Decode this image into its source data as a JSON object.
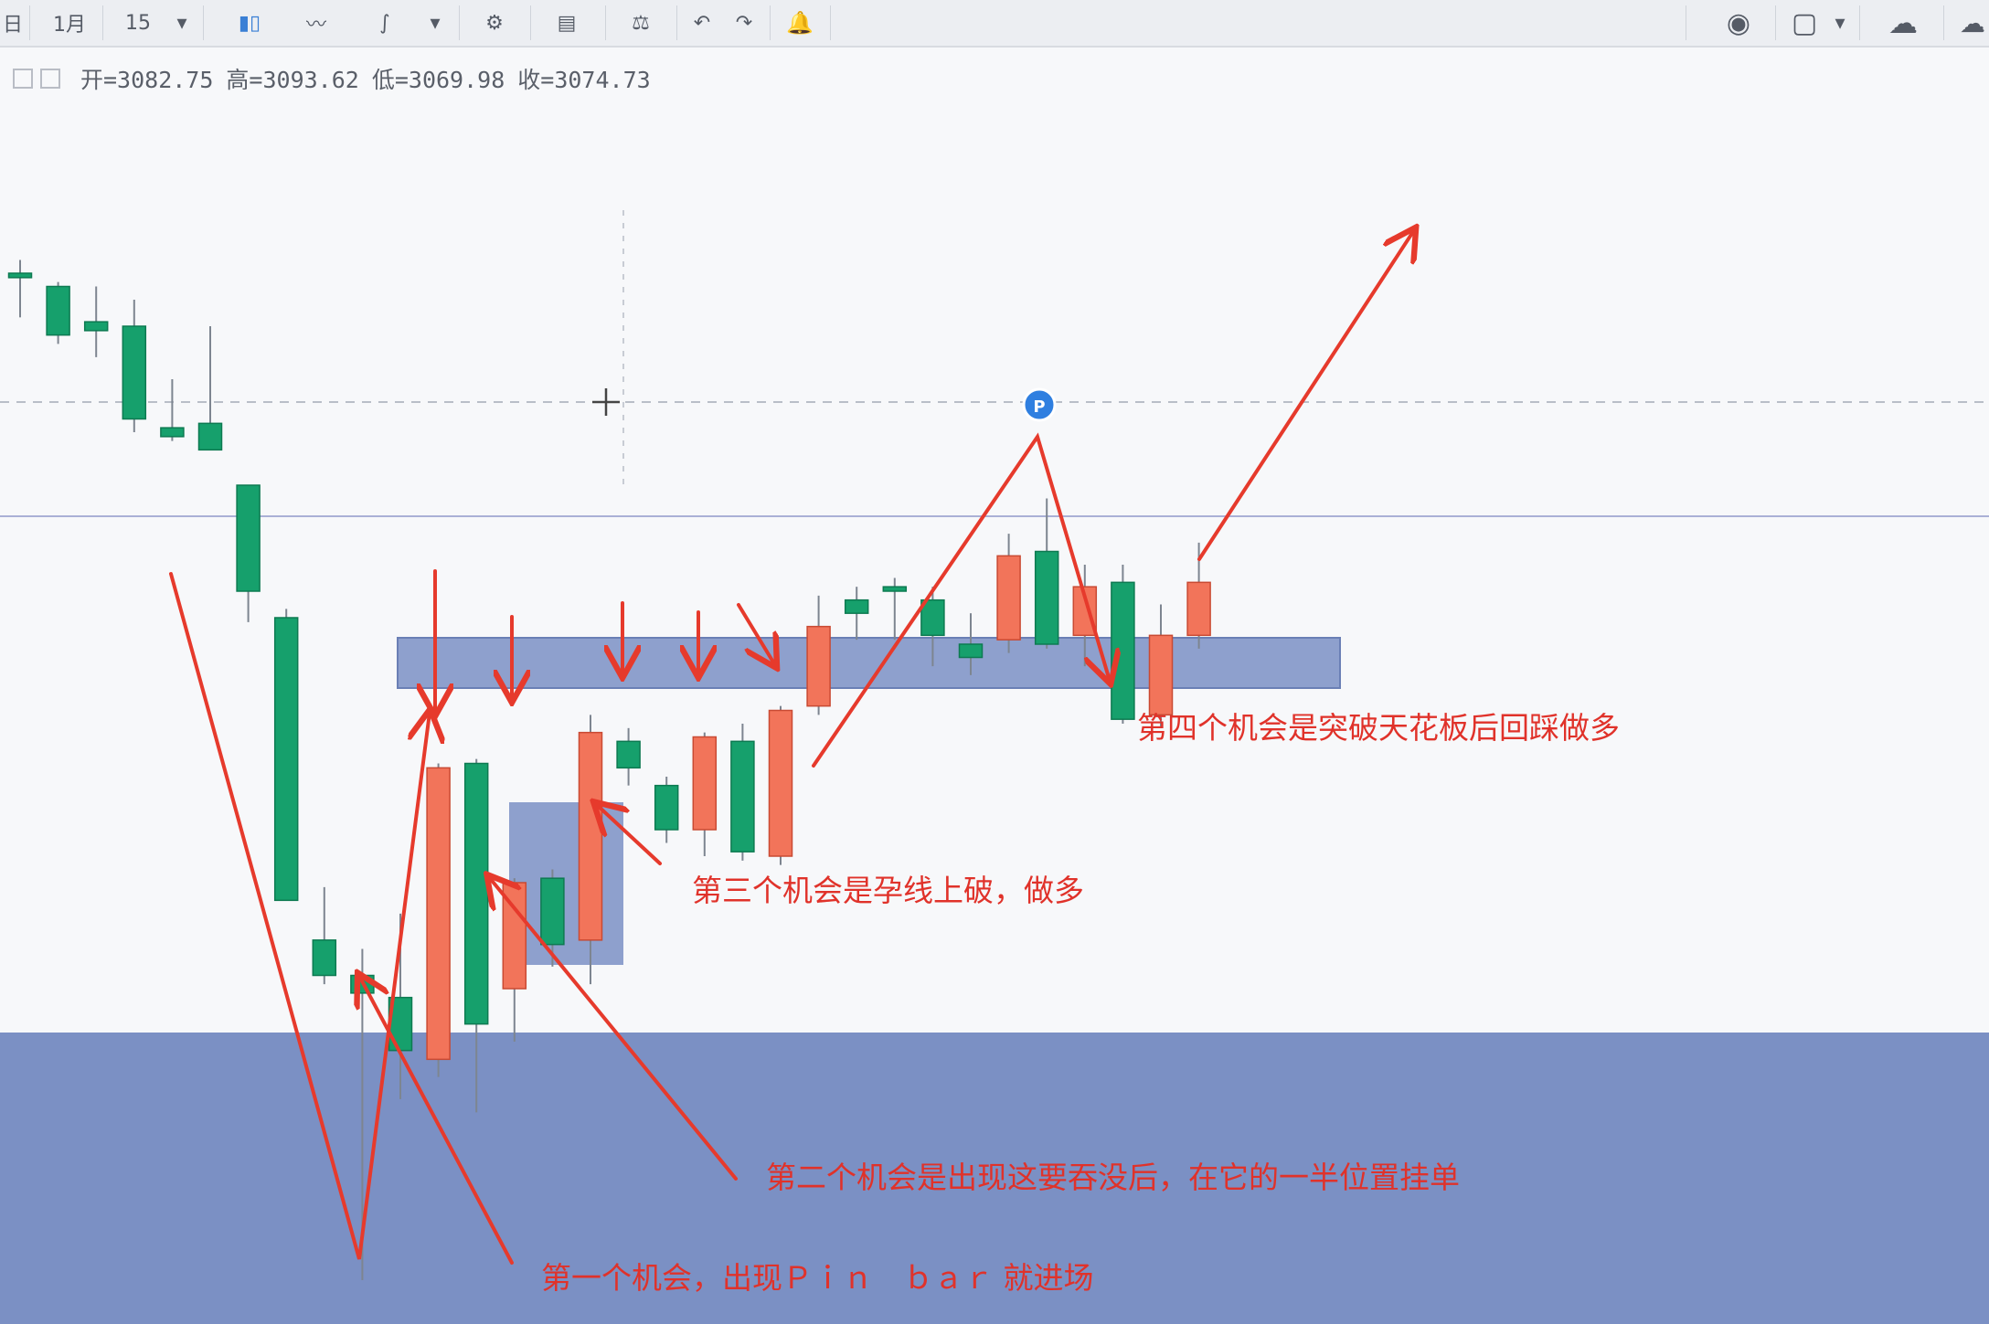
{
  "toolbar": {
    "period_day": "日",
    "period_month": "1月",
    "minutes": "15",
    "items": [
      {
        "name": "dropdown-icon",
        "glyph": "▾"
      },
      {
        "name": "candlestick-icon",
        "glyph": "▮▯"
      },
      {
        "name": "line-chart-icon",
        "glyph": "〰"
      },
      {
        "name": "indicator-icon",
        "glyph": "∫"
      },
      {
        "name": "settings-icon",
        "glyph": "⚙"
      },
      {
        "name": "compare-icon",
        "glyph": "▤"
      },
      {
        "name": "balance-icon",
        "glyph": "⚖"
      },
      {
        "name": "undo-icon",
        "glyph": "↶"
      },
      {
        "name": "redo-icon",
        "glyph": "↷"
      },
      {
        "name": "alert-icon",
        "glyph": "🔔"
      },
      {
        "name": "camera-icon",
        "glyph": "◉"
      },
      {
        "name": "layout-icon",
        "glyph": "▢"
      },
      {
        "name": "cloud-icon",
        "glyph": "☁"
      }
    ]
  },
  "ohlc": {
    "open": "开=3082.75",
    "high": "高=3093.62",
    "low": "低=3069.98",
    "close": "收=3074.73"
  },
  "colors": {
    "up": "#f2745a",
    "down": "#16a06c",
    "zone": "#7b90c4",
    "arrow": "#e63a2c"
  },
  "price_line_marker": "P",
  "annotations": {
    "fourth": "第四个机会是突破天花板后回踩做多",
    "third": "第三个机会是孕线上破，做多",
    "second": "第二个机会是出现这要吞没后，在它的一半位置挂单",
    "first": "第一个机会，出现Ｐｉｎ　ｂａｒ 就进场"
  },
  "candles": [
    {
      "o": 3118,
      "h": 3121,
      "l": 3108,
      "c": 3117
    },
    {
      "o": 3115,
      "h": 3116,
      "l": 3102,
      "c": 3104
    },
    {
      "o": 3107,
      "h": 3115,
      "l": 3099,
      "c": 3105
    },
    {
      "o": 3106,
      "h": 3112,
      "l": 3082,
      "c": 3085
    },
    {
      "o": 3083,
      "h": 3094,
      "l": 3080,
      "c": 3081
    },
    {
      "o": 3084,
      "h": 3106,
      "l": 3078,
      "c": 3078
    },
    {
      "o": 3070,
      "h": 3070,
      "l": 3039,
      "c": 3046
    },
    {
      "o": 3040,
      "h": 3042,
      "l": 2976,
      "c": 2976
    },
    {
      "o": 2967,
      "h": 2979,
      "l": 2957,
      "c": 2959
    },
    {
      "o": 2959,
      "h": 2965,
      "l": 2890,
      "c": 2955
    },
    {
      "o": 2954,
      "h": 2973,
      "l": 2931,
      "c": 2942
    },
    {
      "o": 2940,
      "h": 3007,
      "l": 2936,
      "c": 3006
    },
    {
      "o": 3007,
      "h": 3008,
      "l": 2928,
      "c": 2948
    },
    {
      "o": 2956,
      "h": 2981,
      "l": 2944,
      "c": 2980
    },
    {
      "o": 2981,
      "h": 2983,
      "l": 2961,
      "c": 2966
    },
    {
      "o": 2967,
      "h": 3018,
      "l": 2957,
      "c": 3014
    },
    {
      "o": 3012,
      "h": 3015,
      "l": 3002,
      "c": 3006
    },
    {
      "o": 3002,
      "h": 3004,
      "l": 2989,
      "c": 2992
    },
    {
      "o": 2992,
      "h": 3014,
      "l": 2986,
      "c": 3013
    },
    {
      "o": 3012,
      "h": 3016,
      "l": 2985,
      "c": 2987
    },
    {
      "o": 2986,
      "h": 3020,
      "l": 2984,
      "c": 3019
    },
    {
      "o": 3020,
      "h": 3045,
      "l": 3018,
      "c": 3038
    },
    {
      "o": 3044,
      "h": 3047,
      "l": 3035,
      "c": 3041
    },
    {
      "o": 3047,
      "h": 3049,
      "l": 3035,
      "c": 3046
    },
    {
      "o": 3044,
      "h": 3047,
      "l": 3029,
      "c": 3036
    },
    {
      "o": 3034,
      "h": 3041,
      "l": 3027,
      "c": 3031
    },
    {
      "o": 3035,
      "h": 3059,
      "l": 3032,
      "c": 3054
    },
    {
      "o": 3055,
      "h": 3067,
      "l": 3033,
      "c": 3034
    },
    {
      "o": 3036,
      "h": 3052,
      "l": 3029,
      "c": 3047
    },
    {
      "o": 3048,
      "h": 3052,
      "l": 3016,
      "c": 3017
    },
    {
      "o": 3018,
      "h": 3043,
      "l": 3015,
      "c": 3036
    },
    {
      "o": 3036,
      "h": 3057,
      "l": 3033,
      "c": 3048
    }
  ]
}
